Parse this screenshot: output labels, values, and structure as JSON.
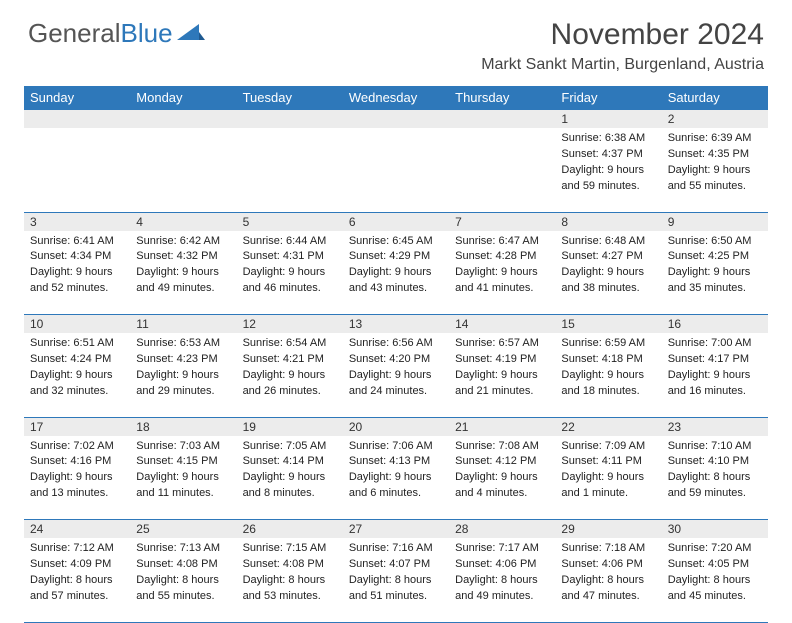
{
  "brand": {
    "part1": "General",
    "part2": "Blue"
  },
  "title": "November 2024",
  "location": "Markt Sankt Martin, Burgenland, Austria",
  "dayNames": [
    "Sunday",
    "Monday",
    "Tuesday",
    "Wednesday",
    "Thursday",
    "Friday",
    "Saturday"
  ],
  "colors": {
    "headerBlue": "#2e78ba",
    "grayBand": "#ececec",
    "text": "#222222",
    "titleText": "#444444"
  },
  "weeks": [
    [
      null,
      null,
      null,
      null,
      null,
      {
        "n": "1",
        "sunrise": "Sunrise: 6:38 AM",
        "sunset": "Sunset: 4:37 PM",
        "day1": "Daylight: 9 hours",
        "day2": "and 59 minutes."
      },
      {
        "n": "2",
        "sunrise": "Sunrise: 6:39 AM",
        "sunset": "Sunset: 4:35 PM",
        "day1": "Daylight: 9 hours",
        "day2": "and 55 minutes."
      }
    ],
    [
      {
        "n": "3",
        "sunrise": "Sunrise: 6:41 AM",
        "sunset": "Sunset: 4:34 PM",
        "day1": "Daylight: 9 hours",
        "day2": "and 52 minutes."
      },
      {
        "n": "4",
        "sunrise": "Sunrise: 6:42 AM",
        "sunset": "Sunset: 4:32 PM",
        "day1": "Daylight: 9 hours",
        "day2": "and 49 minutes."
      },
      {
        "n": "5",
        "sunrise": "Sunrise: 6:44 AM",
        "sunset": "Sunset: 4:31 PM",
        "day1": "Daylight: 9 hours",
        "day2": "and 46 minutes."
      },
      {
        "n": "6",
        "sunrise": "Sunrise: 6:45 AM",
        "sunset": "Sunset: 4:29 PM",
        "day1": "Daylight: 9 hours",
        "day2": "and 43 minutes."
      },
      {
        "n": "7",
        "sunrise": "Sunrise: 6:47 AM",
        "sunset": "Sunset: 4:28 PM",
        "day1": "Daylight: 9 hours",
        "day2": "and 41 minutes."
      },
      {
        "n": "8",
        "sunrise": "Sunrise: 6:48 AM",
        "sunset": "Sunset: 4:27 PM",
        "day1": "Daylight: 9 hours",
        "day2": "and 38 minutes."
      },
      {
        "n": "9",
        "sunrise": "Sunrise: 6:50 AM",
        "sunset": "Sunset: 4:25 PM",
        "day1": "Daylight: 9 hours",
        "day2": "and 35 minutes."
      }
    ],
    [
      {
        "n": "10",
        "sunrise": "Sunrise: 6:51 AM",
        "sunset": "Sunset: 4:24 PM",
        "day1": "Daylight: 9 hours",
        "day2": "and 32 minutes."
      },
      {
        "n": "11",
        "sunrise": "Sunrise: 6:53 AM",
        "sunset": "Sunset: 4:23 PM",
        "day1": "Daylight: 9 hours",
        "day2": "and 29 minutes."
      },
      {
        "n": "12",
        "sunrise": "Sunrise: 6:54 AM",
        "sunset": "Sunset: 4:21 PM",
        "day1": "Daylight: 9 hours",
        "day2": "and 26 minutes."
      },
      {
        "n": "13",
        "sunrise": "Sunrise: 6:56 AM",
        "sunset": "Sunset: 4:20 PM",
        "day1": "Daylight: 9 hours",
        "day2": "and 24 minutes."
      },
      {
        "n": "14",
        "sunrise": "Sunrise: 6:57 AM",
        "sunset": "Sunset: 4:19 PM",
        "day1": "Daylight: 9 hours",
        "day2": "and 21 minutes."
      },
      {
        "n": "15",
        "sunrise": "Sunrise: 6:59 AM",
        "sunset": "Sunset: 4:18 PM",
        "day1": "Daylight: 9 hours",
        "day2": "and 18 minutes."
      },
      {
        "n": "16",
        "sunrise": "Sunrise: 7:00 AM",
        "sunset": "Sunset: 4:17 PM",
        "day1": "Daylight: 9 hours",
        "day2": "and 16 minutes."
      }
    ],
    [
      {
        "n": "17",
        "sunrise": "Sunrise: 7:02 AM",
        "sunset": "Sunset: 4:16 PM",
        "day1": "Daylight: 9 hours",
        "day2": "and 13 minutes."
      },
      {
        "n": "18",
        "sunrise": "Sunrise: 7:03 AM",
        "sunset": "Sunset: 4:15 PM",
        "day1": "Daylight: 9 hours",
        "day2": "and 11 minutes."
      },
      {
        "n": "19",
        "sunrise": "Sunrise: 7:05 AM",
        "sunset": "Sunset: 4:14 PM",
        "day1": "Daylight: 9 hours",
        "day2": "and 8 minutes."
      },
      {
        "n": "20",
        "sunrise": "Sunrise: 7:06 AM",
        "sunset": "Sunset: 4:13 PM",
        "day1": "Daylight: 9 hours",
        "day2": "and 6 minutes."
      },
      {
        "n": "21",
        "sunrise": "Sunrise: 7:08 AM",
        "sunset": "Sunset: 4:12 PM",
        "day1": "Daylight: 9 hours",
        "day2": "and 4 minutes."
      },
      {
        "n": "22",
        "sunrise": "Sunrise: 7:09 AM",
        "sunset": "Sunset: 4:11 PM",
        "day1": "Daylight: 9 hours",
        "day2": "and 1 minute."
      },
      {
        "n": "23",
        "sunrise": "Sunrise: 7:10 AM",
        "sunset": "Sunset: 4:10 PM",
        "day1": "Daylight: 8 hours",
        "day2": "and 59 minutes."
      }
    ],
    [
      {
        "n": "24",
        "sunrise": "Sunrise: 7:12 AM",
        "sunset": "Sunset: 4:09 PM",
        "day1": "Daylight: 8 hours",
        "day2": "and 57 minutes."
      },
      {
        "n": "25",
        "sunrise": "Sunrise: 7:13 AM",
        "sunset": "Sunset: 4:08 PM",
        "day1": "Daylight: 8 hours",
        "day2": "and 55 minutes."
      },
      {
        "n": "26",
        "sunrise": "Sunrise: 7:15 AM",
        "sunset": "Sunset: 4:08 PM",
        "day1": "Daylight: 8 hours",
        "day2": "and 53 minutes."
      },
      {
        "n": "27",
        "sunrise": "Sunrise: 7:16 AM",
        "sunset": "Sunset: 4:07 PM",
        "day1": "Daylight: 8 hours",
        "day2": "and 51 minutes."
      },
      {
        "n": "28",
        "sunrise": "Sunrise: 7:17 AM",
        "sunset": "Sunset: 4:06 PM",
        "day1": "Daylight: 8 hours",
        "day2": "and 49 minutes."
      },
      {
        "n": "29",
        "sunrise": "Sunrise: 7:18 AM",
        "sunset": "Sunset: 4:06 PM",
        "day1": "Daylight: 8 hours",
        "day2": "and 47 minutes."
      },
      {
        "n": "30",
        "sunrise": "Sunrise: 7:20 AM",
        "sunset": "Sunset: 4:05 PM",
        "day1": "Daylight: 8 hours",
        "day2": "and 45 minutes."
      }
    ]
  ]
}
